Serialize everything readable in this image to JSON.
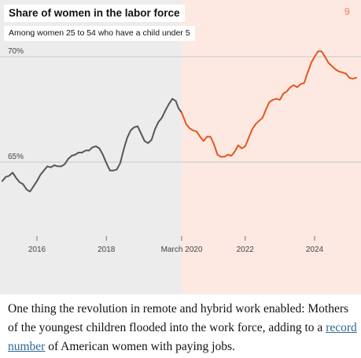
{
  "page_number": "9",
  "chart_data": {
    "type": "line",
    "title": "Share of women in the labor force",
    "subtitle": "Among women 25 to 54 who have a child under 5",
    "ylim": [
      62.5,
      71
    ],
    "xlim": [
      2015.0,
      2025.25
    ],
    "y_ticks": [
      {
        "value": 70,
        "label": "70%"
      },
      {
        "value": 65,
        "label": "65%"
      }
    ],
    "x_ticks": [
      {
        "value": 2016,
        "label": "2016"
      },
      {
        "value": 2018,
        "label": "2018"
      },
      {
        "value": 2020.17,
        "label": "March 2020"
      },
      {
        "value": 2022,
        "label": "2022"
      },
      {
        "value": 2024,
        "label": "2024"
      }
    ],
    "split_x": 2020.17,
    "series": [
      {
        "name": "",
        "color": "#555555",
        "points": [
          [
            2015.0,
            64.1
          ],
          [
            2015.1,
            64.3
          ],
          [
            2015.2,
            64.35
          ],
          [
            2015.3,
            64.5
          ],
          [
            2015.4,
            64.25
          ],
          [
            2015.5,
            64.05
          ],
          [
            2015.6,
            63.95
          ],
          [
            2015.7,
            63.7
          ],
          [
            2015.8,
            63.6
          ],
          [
            2015.9,
            63.85
          ],
          [
            2016.0,
            64.1
          ],
          [
            2016.1,
            64.4
          ],
          [
            2016.2,
            64.6
          ],
          [
            2016.3,
            64.8
          ],
          [
            2016.4,
            64.75
          ],
          [
            2016.5,
            64.85
          ],
          [
            2016.6,
            64.8
          ],
          [
            2016.7,
            64.8
          ],
          [
            2016.8,
            64.9
          ],
          [
            2016.9,
            65.15
          ],
          [
            2017.0,
            65.3
          ],
          [
            2017.1,
            65.35
          ],
          [
            2017.2,
            65.45
          ],
          [
            2017.3,
            65.45
          ],
          [
            2017.4,
            65.55
          ],
          [
            2017.5,
            65.55
          ],
          [
            2017.6,
            65.7
          ],
          [
            2017.7,
            65.75
          ],
          [
            2017.8,
            65.65
          ],
          [
            2017.9,
            65.35
          ],
          [
            2018.0,
            64.95
          ],
          [
            2018.1,
            64.6
          ],
          [
            2018.2,
            64.6
          ],
          [
            2018.3,
            64.65
          ],
          [
            2018.4,
            64.95
          ],
          [
            2018.5,
            65.6
          ],
          [
            2018.6,
            66.15
          ],
          [
            2018.7,
            66.5
          ],
          [
            2018.8,
            66.65
          ],
          [
            2018.9,
            66.7
          ],
          [
            2019.0,
            66.35
          ],
          [
            2019.1,
            66.0
          ],
          [
            2019.2,
            65.9
          ],
          [
            2019.3,
            66.05
          ],
          [
            2019.4,
            66.55
          ],
          [
            2019.5,
            66.9
          ],
          [
            2019.6,
            67.1
          ],
          [
            2019.7,
            67.45
          ],
          [
            2019.8,
            67.75
          ],
          [
            2019.9,
            68.0
          ],
          [
            2020.0,
            67.9
          ],
          [
            2020.08,
            67.55
          ],
          [
            2020.17,
            67.35
          ]
        ]
      },
      {
        "name": "",
        "color": "#e8541f",
        "points": [
          [
            2020.17,
            67.35
          ],
          [
            2020.3,
            66.8
          ],
          [
            2020.4,
            66.6
          ],
          [
            2020.5,
            66.5
          ],
          [
            2020.6,
            66.45
          ],
          [
            2020.7,
            66.2
          ],
          [
            2020.8,
            66.0
          ],
          [
            2020.9,
            66.2
          ],
          [
            2021.0,
            66.2
          ],
          [
            2021.1,
            65.85
          ],
          [
            2021.2,
            65.35
          ],
          [
            2021.3,
            65.25
          ],
          [
            2021.4,
            65.25
          ],
          [
            2021.5,
            65.35
          ],
          [
            2021.6,
            65.3
          ],
          [
            2021.7,
            65.5
          ],
          [
            2021.8,
            65.8
          ],
          [
            2021.9,
            65.65
          ],
          [
            2022.0,
            65.75
          ],
          [
            2022.1,
            66.15
          ],
          [
            2022.2,
            66.55
          ],
          [
            2022.3,
            66.8
          ],
          [
            2022.4,
            66.95
          ],
          [
            2022.5,
            67.1
          ],
          [
            2022.6,
            67.5
          ],
          [
            2022.7,
            67.85
          ],
          [
            2022.8,
            67.95
          ],
          [
            2022.9,
            68.0
          ],
          [
            2023.0,
            67.95
          ],
          [
            2023.1,
            68.25
          ],
          [
            2023.2,
            68.35
          ],
          [
            2023.3,
            68.55
          ],
          [
            2023.4,
            68.65
          ],
          [
            2023.5,
            68.55
          ],
          [
            2023.6,
            68.7
          ],
          [
            2023.7,
            68.75
          ],
          [
            2023.8,
            69.25
          ],
          [
            2023.9,
            69.7
          ],
          [
            2024.0,
            70.0
          ],
          [
            2024.1,
            70.25
          ],
          [
            2024.2,
            70.25
          ],
          [
            2024.3,
            70.0
          ],
          [
            2024.4,
            69.7
          ],
          [
            2024.5,
            69.55
          ],
          [
            2024.6,
            69.4
          ],
          [
            2024.7,
            69.3
          ],
          [
            2024.8,
            69.25
          ],
          [
            2024.9,
            69.2
          ],
          [
            2025.0,
            69.0
          ],
          [
            2025.1,
            68.95
          ],
          [
            2025.2,
            69.0
          ]
        ]
      }
    ]
  },
  "caption": {
    "before": "One thing the revolution in remote and hybrid work enabled: Mothers of the youngest children flooded into the work force, adding to a ",
    "link": "record number",
    "after": " of American women with paying jobs."
  }
}
